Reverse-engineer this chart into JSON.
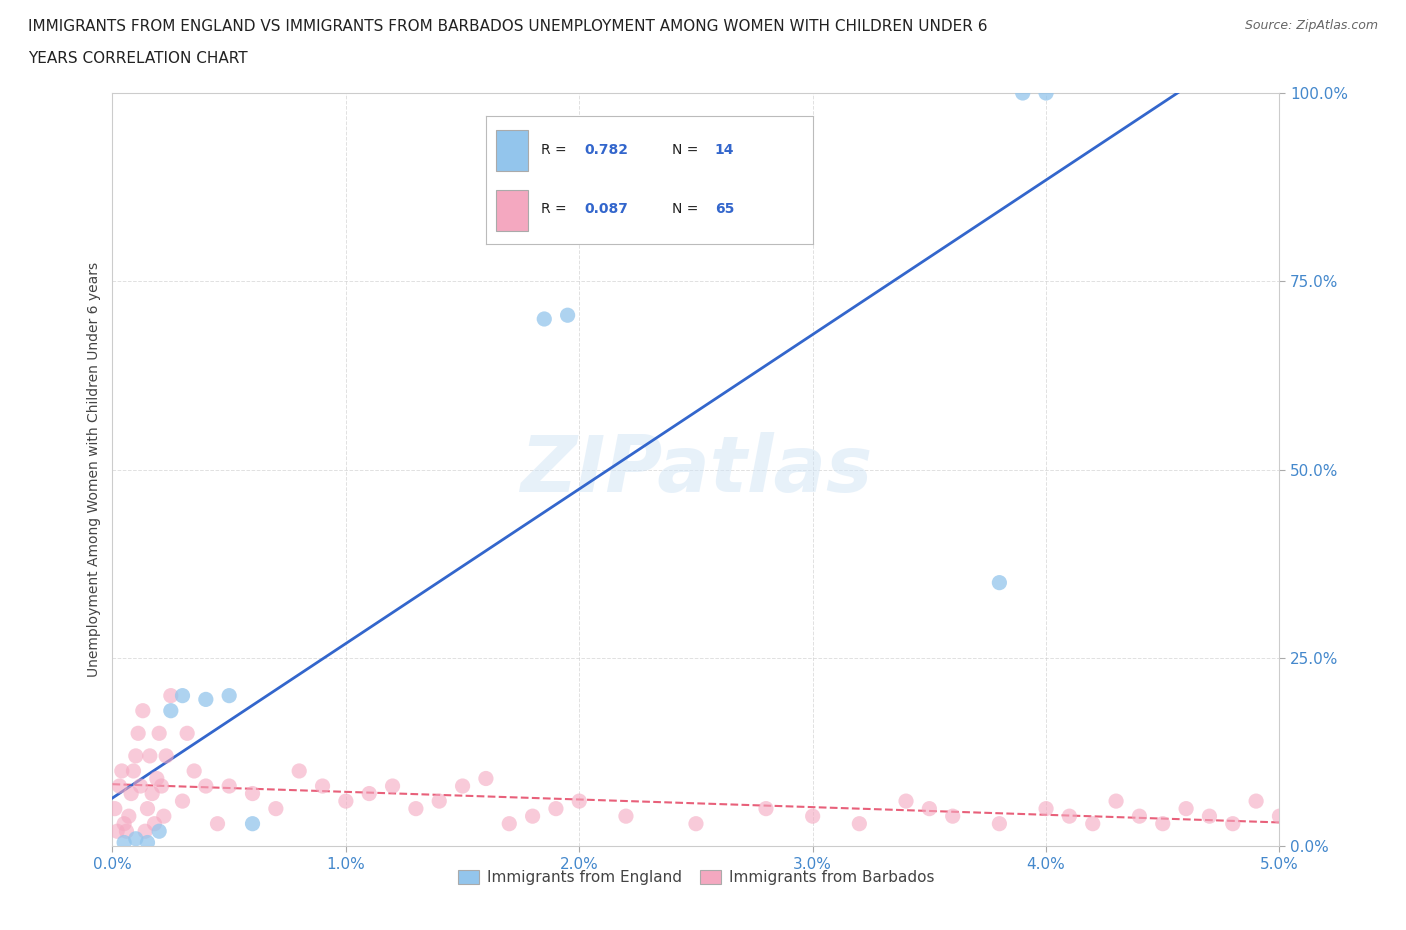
{
  "title_line1": "IMMIGRANTS FROM ENGLAND VS IMMIGRANTS FROM BARBADOS UNEMPLOYMENT AMONG WOMEN WITH CHILDREN UNDER 6",
  "title_line2": "YEARS CORRELATION CHART",
  "source": "Source: ZipAtlas.com",
  "ylabel": "Unemployment Among Women with Children Under 6 years",
  "xlim": [
    0,
    0.05
  ],
  "ylim": [
    0,
    1.0
  ],
  "xticks": [
    0.0,
    0.01,
    0.02,
    0.03,
    0.04,
    0.05
  ],
  "yticks": [
    0.0,
    0.25,
    0.5,
    0.75,
    1.0
  ],
  "xtick_labels": [
    "0.0%",
    "1.0%",
    "2.0%",
    "3.0%",
    "4.0%",
    "5.0%"
  ],
  "ytick_labels": [
    "0.0%",
    "25.0%",
    "50.0%",
    "75.0%",
    "100.0%"
  ],
  "england_R": 0.782,
  "england_N": 14,
  "barbados_R": 0.087,
  "barbados_N": 65,
  "england_color": "#93c5ec",
  "barbados_color": "#f4a8c0",
  "england_line_color": "#3366cc",
  "barbados_line_color": "#e8607a",
  "watermark": "ZIPatlas",
  "background_color": "#ffffff",
  "grid_color": "#cccccc",
  "england_x": [
    0.0005,
    0.001,
    0.0015,
    0.002,
    0.0025,
    0.003,
    0.004,
    0.005,
    0.006,
    0.0185,
    0.0195,
    0.038,
    0.039,
    0.04
  ],
  "england_y": [
    0.005,
    0.01,
    0.005,
    0.02,
    0.18,
    0.2,
    0.195,
    0.2,
    0.03,
    0.7,
    0.705,
    0.35,
    1.0,
    1.0
  ],
  "barbados_x": [
    0.0001,
    0.0002,
    0.0003,
    0.0004,
    0.0005,
    0.0006,
    0.0007,
    0.0008,
    0.0009,
    0.001,
    0.0011,
    0.0012,
    0.0013,
    0.0014,
    0.0015,
    0.0016,
    0.0017,
    0.0018,
    0.0019,
    0.002,
    0.0021,
    0.0022,
    0.0023,
    0.0025,
    0.003,
    0.0032,
    0.0035,
    0.004,
    0.0045,
    0.005,
    0.006,
    0.007,
    0.008,
    0.009,
    0.01,
    0.011,
    0.012,
    0.013,
    0.014,
    0.015,
    0.016,
    0.017,
    0.018,
    0.019,
    0.02,
    0.022,
    0.025,
    0.028,
    0.03,
    0.032,
    0.034,
    0.035,
    0.036,
    0.038,
    0.04,
    0.041,
    0.042,
    0.043,
    0.044,
    0.045,
    0.046,
    0.047,
    0.048,
    0.049,
    0.05
  ],
  "barbados_y": [
    0.05,
    0.02,
    0.08,
    0.1,
    0.03,
    0.02,
    0.04,
    0.07,
    0.1,
    0.12,
    0.15,
    0.08,
    0.18,
    0.02,
    0.05,
    0.12,
    0.07,
    0.03,
    0.09,
    0.15,
    0.08,
    0.04,
    0.12,
    0.2,
    0.06,
    0.15,
    0.1,
    0.08,
    0.03,
    0.08,
    0.07,
    0.05,
    0.1,
    0.08,
    0.06,
    0.07,
    0.08,
    0.05,
    0.06,
    0.08,
    0.09,
    0.03,
    0.04,
    0.05,
    0.06,
    0.04,
    0.03,
    0.05,
    0.04,
    0.03,
    0.06,
    0.05,
    0.04,
    0.03,
    0.05,
    0.04,
    0.03,
    0.06,
    0.04,
    0.03,
    0.05,
    0.04,
    0.03,
    0.06,
    0.04
  ]
}
